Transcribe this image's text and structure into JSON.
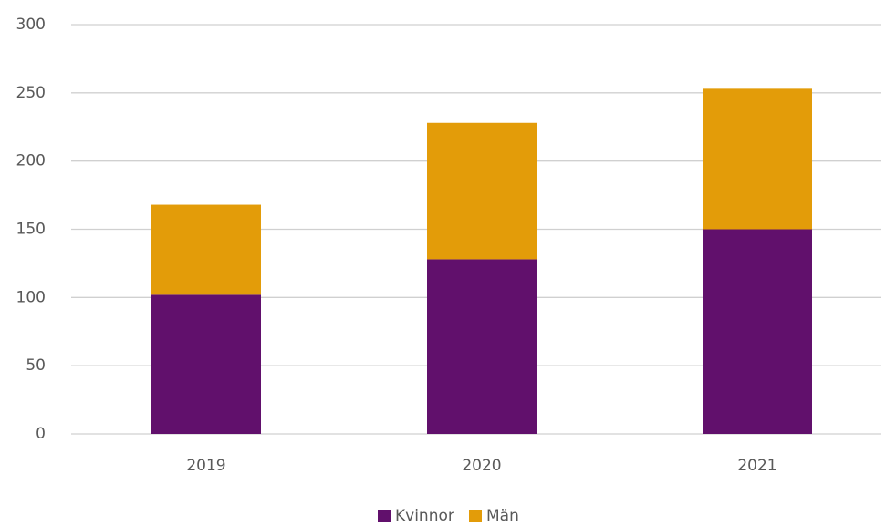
{
  "chart_data": {
    "type": "stacked_bar",
    "categories": [
      "2019",
      "2020",
      "2021"
    ],
    "series": [
      {
        "name": "Kvinnor",
        "color": "#61106c",
        "values": [
          102,
          128,
          150
        ]
      },
      {
        "name": "Män",
        "color": "#e39c09",
        "values": [
          66,
          100,
          103
        ]
      }
    ],
    "ylim": [
      0,
      300
    ],
    "yticks": [
      0,
      50,
      100,
      150,
      200,
      250,
      300
    ],
    "grid": true,
    "legend": "bottom"
  }
}
